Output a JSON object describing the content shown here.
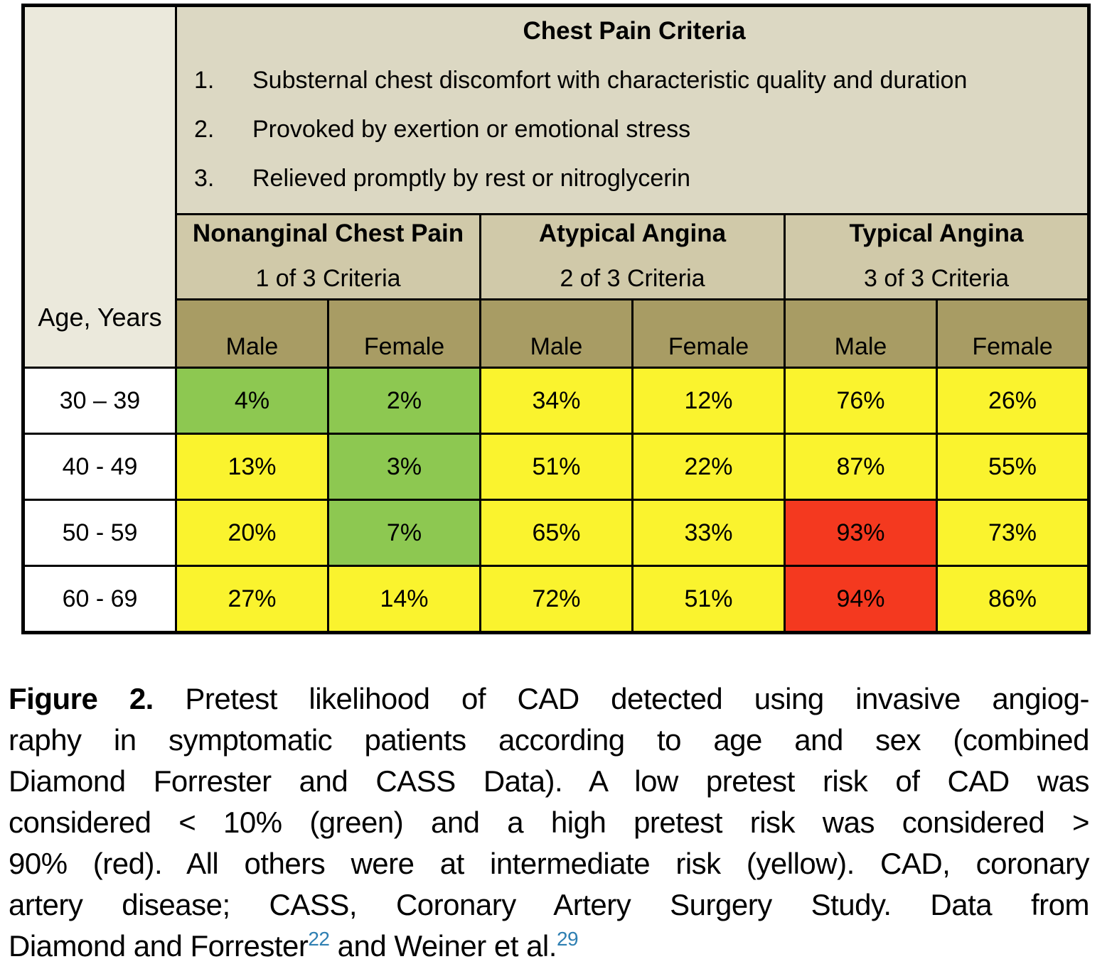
{
  "colors": {
    "risk_low_green": "#8dc851",
    "risk_intermediate_yellow": "#faf32e",
    "risk_high_red": "#f4391f",
    "criteria_header_beige": "#dcd8c3",
    "age_corner_beige": "#ebe9dc",
    "group_header_tan": "#d0c9a9",
    "sex_header_olive": "#a89c64",
    "border_black": "#000000",
    "reference_link_blue": "#2e7fb2"
  },
  "table": {
    "corner_label": "Age, Years",
    "criteria_header": {
      "title": "Chest Pain Criteria",
      "items": [
        {
          "number": "1.",
          "text": "Substernal chest discomfort with characteristic quality and duration"
        },
        {
          "number": "2.",
          "text": "Provoked by exertion or emotional stress"
        },
        {
          "number": "3.",
          "text": "Relieved promptly by rest or nitroglycerin"
        }
      ]
    },
    "groups": [
      {
        "title": "Nonanginal Chest Pain",
        "subtitle": "1 of 3 Criteria"
      },
      {
        "title": "Atypical Angina",
        "subtitle": "2 of 3 Criteria"
      },
      {
        "title": "Typical Angina",
        "subtitle": "3 of 3 Criteria"
      }
    ],
    "sex_labels": [
      "Male",
      "Female"
    ],
    "rows": [
      {
        "age": "30 – 39",
        "cells": [
          {
            "value": "4%",
            "risk": "low"
          },
          {
            "value": "2%",
            "risk": "low"
          },
          {
            "value": "34%",
            "risk": "intermediate"
          },
          {
            "value": "12%",
            "risk": "intermediate"
          },
          {
            "value": "76%",
            "risk": "intermediate"
          },
          {
            "value": "26%",
            "risk": "intermediate"
          }
        ]
      },
      {
        "age": "40 - 49",
        "cells": [
          {
            "value": "13%",
            "risk": "intermediate"
          },
          {
            "value": "3%",
            "risk": "low"
          },
          {
            "value": "51%",
            "risk": "intermediate"
          },
          {
            "value": "22%",
            "risk": "intermediate"
          },
          {
            "value": "87%",
            "risk": "intermediate"
          },
          {
            "value": "55%",
            "risk": "intermediate"
          }
        ]
      },
      {
        "age": "50 - 59",
        "cells": [
          {
            "value": "20%",
            "risk": "intermediate"
          },
          {
            "value": "7%",
            "risk": "low"
          },
          {
            "value": "65%",
            "risk": "intermediate"
          },
          {
            "value": "33%",
            "risk": "intermediate"
          },
          {
            "value": "93%",
            "risk": "high"
          },
          {
            "value": "73%",
            "risk": "intermediate"
          }
        ]
      },
      {
        "age": "60 - 69",
        "cells": [
          {
            "value": "27%",
            "risk": "intermediate"
          },
          {
            "value": "14%",
            "risk": "intermediate"
          },
          {
            "value": "72%",
            "risk": "intermediate"
          },
          {
            "value": "51%",
            "risk": "intermediate"
          },
          {
            "value": "94%",
            "risk": "high"
          },
          {
            "value": "86%",
            "risk": "intermediate"
          }
        ]
      }
    ]
  },
  "caption": {
    "label": "Figure 2.",
    "lines": [
      " Pretest likelihood of CAD detected using invasive angiog-",
      "raphy in symptomatic patients according to age and sex (combined",
      "Diamond Forrester and CASS Data). A low pretest risk of CAD was",
      "considered < 10% (green) and a high pretest risk was considered >",
      "90% (red). All others were at intermediate risk (yellow). CAD, coronary",
      "artery disease; CASS, Coronary Artery Surgery Study. Data from"
    ],
    "last_line": {
      "text1": "Diamond and Forrester",
      "ref1": "22",
      "text2": " and Weiner et al.",
      "ref2": "29"
    }
  }
}
